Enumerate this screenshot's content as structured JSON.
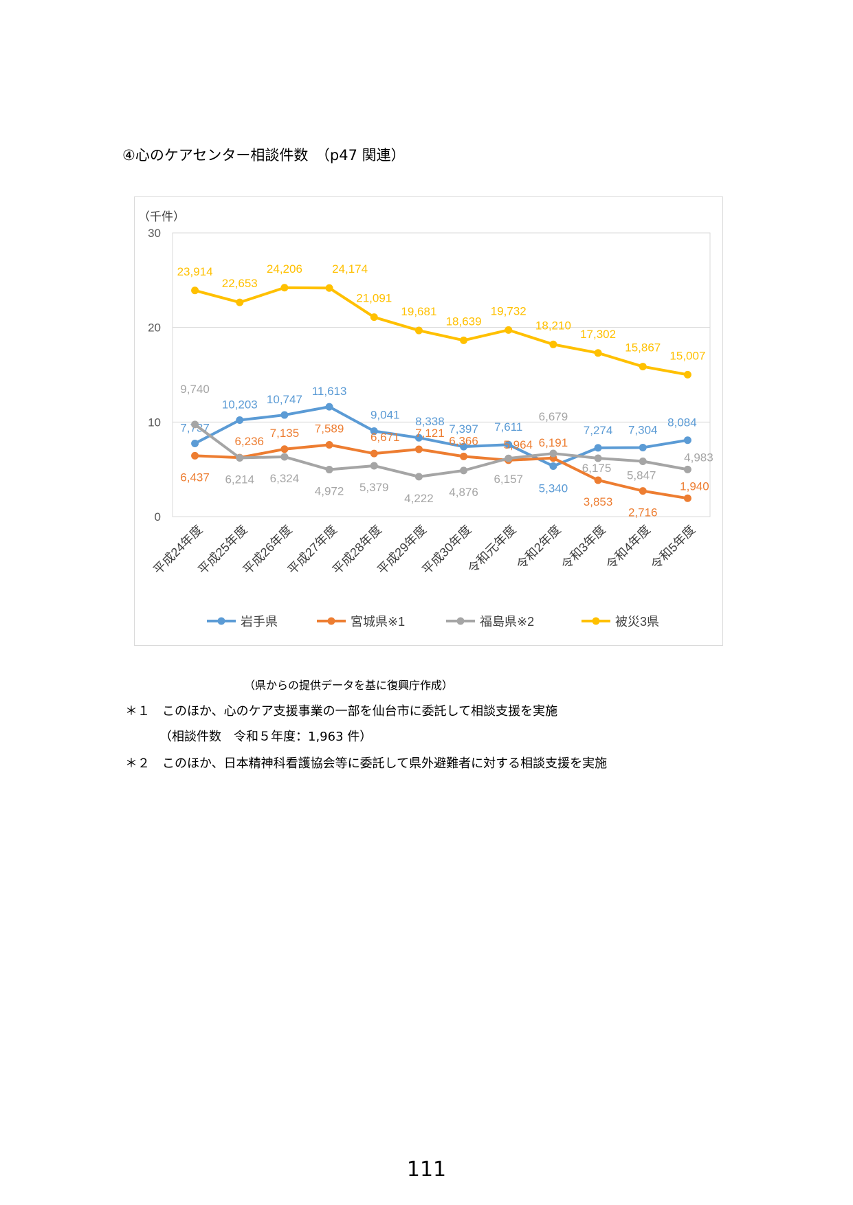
{
  "heading": "④心のケアセンター相談件数　（p47 関連）",
  "chart_data": {
    "type": "line",
    "unit_label": "（千件）",
    "ylim": [
      0,
      30
    ],
    "yticks": [
      0,
      10,
      20,
      30
    ],
    "grid": true,
    "legend_position": "bottom",
    "categories": [
      "平成24年度",
      "平成25年度",
      "平成26年度",
      "平成27年度",
      "平成28年度",
      "平成29年度",
      "平成30年度",
      "令和元年度",
      "令和2年度",
      "令和3年度",
      "令和4年度",
      "令和5年度"
    ],
    "series": [
      {
        "name": "岩手県",
        "color": "#5b9bd5",
        "values": [
          7.737,
          10.203,
          10.747,
          11.613,
          9.041,
          8.338,
          7.397,
          7.611,
          5.34,
          7.274,
          7.304,
          8.084
        ],
        "labels": [
          "7,737",
          "10,203",
          "10,747",
          "11,613",
          "9,041",
          "8,338",
          "7,397",
          "7,611",
          "5,340",
          "7,274",
          "7,304",
          "8,084"
        ]
      },
      {
        "name": "宮城県※1",
        "color": "#ed7d31",
        "values": [
          6.437,
          6.236,
          7.135,
          7.589,
          6.671,
          7.121,
          6.366,
          5.964,
          6.191,
          3.853,
          2.716,
          1.94
        ],
        "labels": [
          "6,437",
          "6,236",
          "7,135",
          "7,589",
          "6,671",
          "7,121",
          "6,366",
          "5,964",
          "6,191",
          "3,853",
          "2,716",
          "1,940"
        ]
      },
      {
        "name": "福島県※2",
        "color": "#a5a5a5",
        "values": [
          9.74,
          6.214,
          6.324,
          4.972,
          5.379,
          4.222,
          4.876,
          6.157,
          6.679,
          6.175,
          5.847,
          4.983
        ],
        "labels": [
          "9,740",
          "6,214",
          "6,324",
          "4,972",
          "5,379",
          "4,222",
          "4,876",
          "6,157",
          "6,679",
          "6,175",
          "5,847",
          "4,983"
        ]
      },
      {
        "name": "被災3県",
        "color": "#ffc000",
        "values": [
          23.914,
          22.653,
          24.206,
          24.174,
          21.091,
          19.681,
          18.639,
          19.732,
          18.21,
          17.302,
          15.867,
          15.007
        ],
        "labels": [
          "23,914",
          "22,653",
          "24,206",
          "24,174",
          "21,091",
          "19,681",
          "18,639",
          "19,732",
          "18,210",
          "17,302",
          "15,867",
          "15,007"
        ]
      }
    ]
  },
  "source_note": "（県からの提供データを基に復興庁作成）",
  "footnote1": "＊１　このほか、心のケア支援事業の一部を仙台市に委託して相談支援を実施",
  "footnote1_sub": "（相談件数　令和５年度：1,963 件）",
  "footnote2": "＊２　このほか、日本精神科看護協会等に委託して県外避難者に対する相談支援を実施",
  "page_number": "111"
}
